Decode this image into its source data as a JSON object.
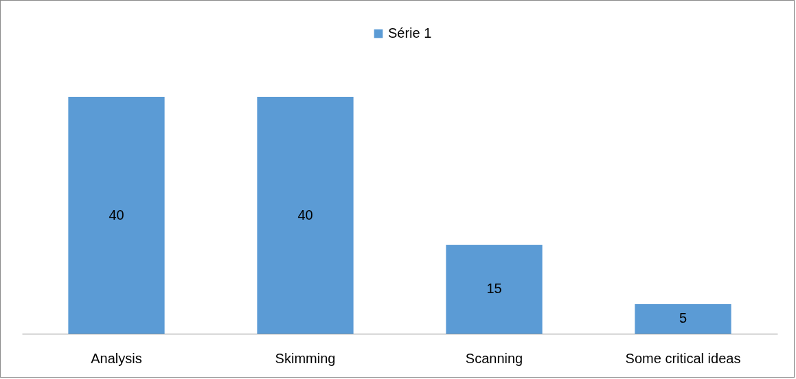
{
  "chart_data": {
    "type": "bar",
    "categories": [
      "Analysis",
      "Skimming",
      "Scanning",
      "Some critical ideas"
    ],
    "series": [
      {
        "name": "Série 1",
        "color": "#5b9bd5",
        "values": [
          40,
          40,
          15,
          5
        ]
      }
    ],
    "data_labels": true,
    "legend": "top",
    "grid": false
  }
}
